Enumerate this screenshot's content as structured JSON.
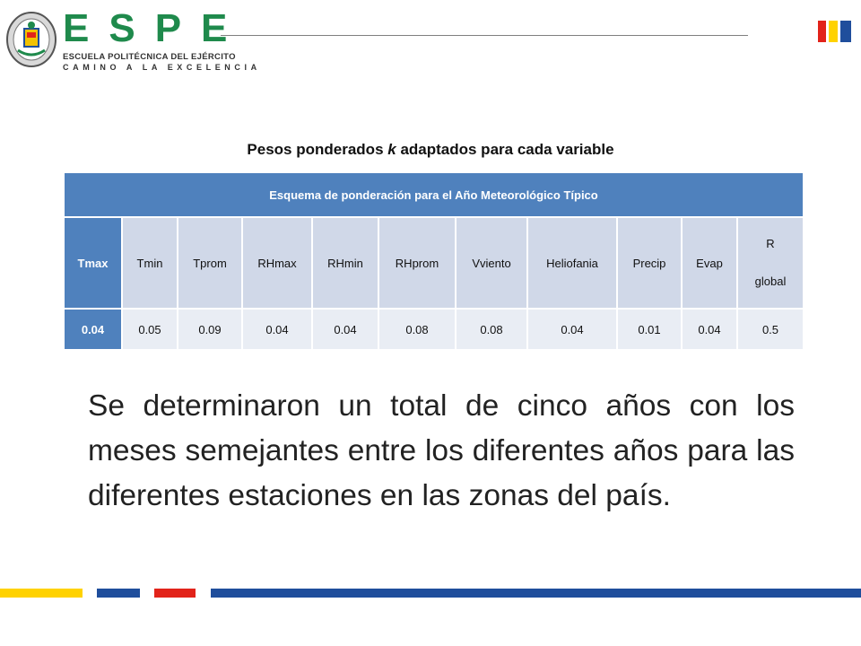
{
  "header": {
    "brand": "ESPE",
    "institution": "ESCUELA POLITÉCNICA DEL EJÉRCITO",
    "motto": "CAMINO A LA EXCELENCIA",
    "seal_icon": "espe-seal-icon",
    "flag_colors": [
      "#e2231a",
      "#ffd200",
      "#1f4e9c"
    ]
  },
  "caption": {
    "before": "Pesos ponderados ",
    "italic": "k",
    "after": " adaptados para cada variable"
  },
  "table": {
    "title": "Esquema de ponderación para el Año Meteorológico Típico",
    "columns": [
      "Tmax",
      "Tmin",
      "Tprom",
      "RHmax",
      "RHmin",
      "RHprom",
      "Vviento",
      "Heliofania",
      "Precip",
      "Evap",
      "R global"
    ],
    "last_column_lines": [
      "R",
      "global"
    ],
    "values": [
      "0.04",
      "0.05",
      "0.09",
      "0.04",
      "0.04",
      "0.08",
      "0.08",
      "0.04",
      "0.01",
      "0.04",
      "0.5"
    ]
  },
  "body_text": "Se determinaron un total de cinco años con los meses semejantes entre los diferentes años para las diferentes estaciones en las zonas del país.",
  "colors": {
    "table_header_blue": "#4f81bd",
    "table_row_light": "#d0d8e8",
    "table_row_lighter": "#e9edf4",
    "brand_green": "#1f8a4c",
    "bar_yellow": "#ffd200",
    "bar_blue": "#1f4e9c",
    "bar_red": "#e2231a"
  }
}
